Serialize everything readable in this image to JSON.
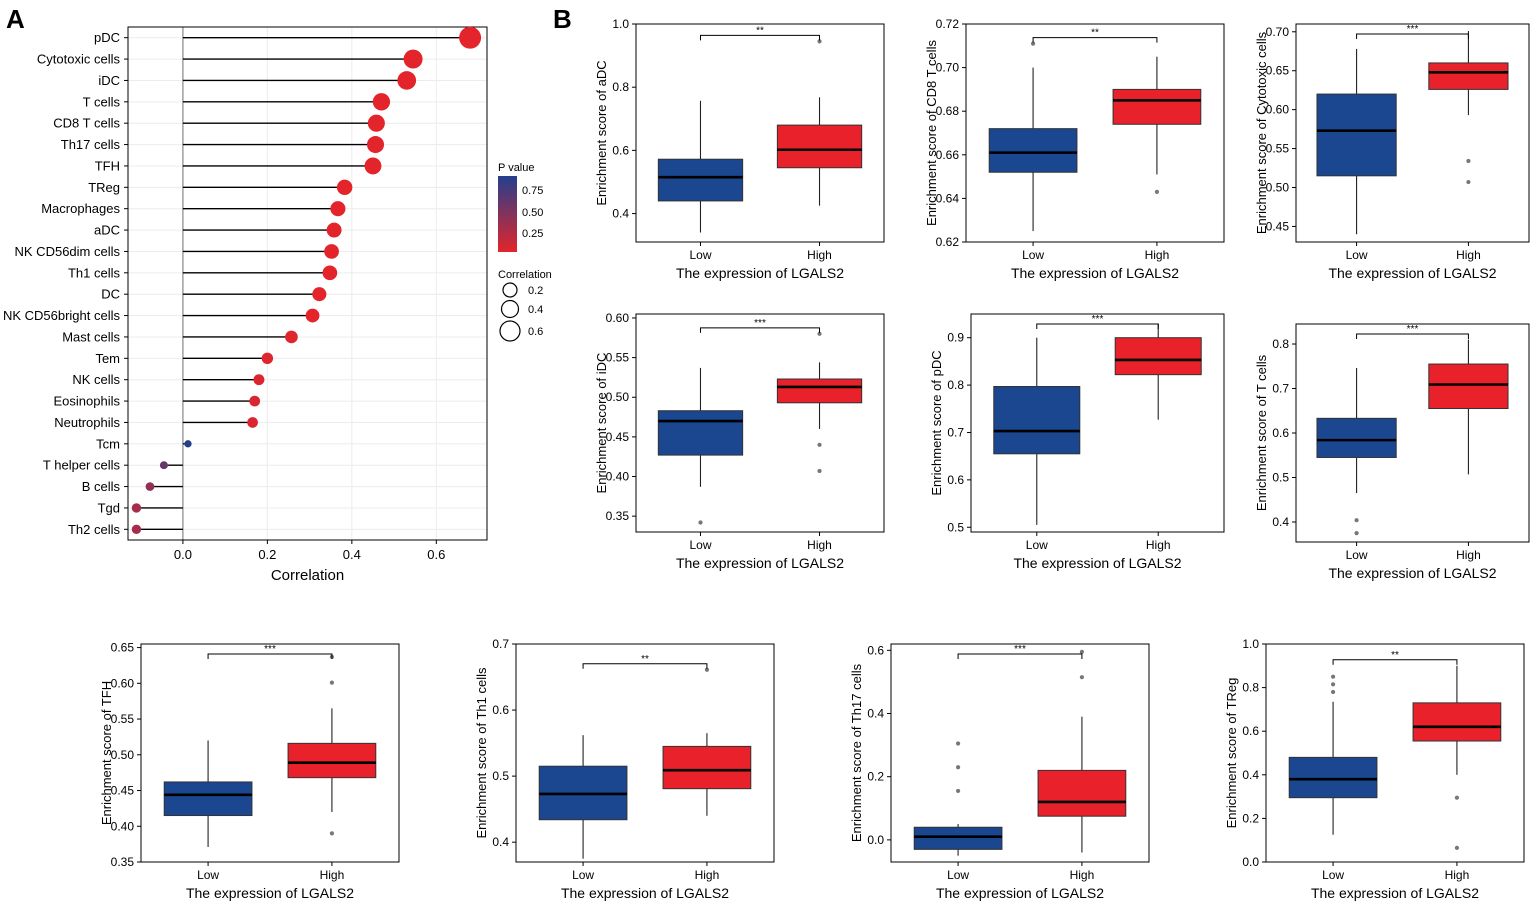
{
  "panel_labels": {
    "a": "A",
    "b": "B"
  },
  "colors": {
    "low": "#1b4690",
    "high": "#e8212a",
    "pmax": "#243f8d",
    "pmin": "#e3252b",
    "grid": "#ececec"
  },
  "chart_data": [
    {
      "type": "lollipop",
      "panel": "A",
      "xlabel": "Correlation",
      "xlim": [
        -0.13,
        0.72
      ],
      "xticks": [
        0.0,
        0.2,
        0.4,
        0.6
      ],
      "xtick_labels": [
        "0.0",
        "0.2",
        "0.4",
        "0.6"
      ],
      "categories": [
        "pDC",
        "Cytotoxic cells",
        "iDC",
        "T cells",
        "CD8 T cells",
        "Th17 cells",
        "TFH",
        "TReg",
        "Macrophages",
        "aDC",
        "NK CD56dim cells",
        "Th1 cells",
        "DC",
        "NK CD56bright cells",
        "Mast cells",
        "Tem",
        "NK cells",
        "Eosinophils",
        "Neutrophils",
        "Tcm",
        "T helper cells",
        "B cells",
        "Tgd",
        "Th2 cells"
      ],
      "correlation": [
        0.68,
        0.545,
        0.53,
        0.47,
        0.458,
        0.456,
        0.45,
        0.383,
        0.367,
        0.358,
        0.352,
        0.348,
        0.323,
        0.307,
        0.257,
        0.2,
        0.18,
        0.17,
        0.165,
        0.012,
        -0.045,
        -0.078,
        -0.11,
        -0.11
      ],
      "p_value": [
        0.0,
        0.0,
        0.0,
        0.0,
        0.0,
        0.0,
        0.0,
        0.0,
        0.0,
        0.0,
        0.0,
        0.0,
        0.0,
        0.0,
        0.02,
        0.03,
        0.04,
        0.05,
        0.05,
        0.92,
        0.6,
        0.4,
        0.3,
        0.3
      ],
      "legend": {
        "p_title": "P value",
        "p_ticks": [
          "0.75",
          "0.50",
          "0.25"
        ],
        "size_title": "Correlation",
        "size_ticks": [
          "0.2",
          "0.4",
          "0.6"
        ]
      }
    },
    {
      "type": "boxplot",
      "ylabel": "Enrichment score of aDC",
      "xlabel": "The expression of LGALS2",
      "categories": [
        "Low",
        "High"
      ],
      "ylim": [
        0.31,
        1.0
      ],
      "yticks": [
        "0.4",
        "0.6",
        "0.8",
        "1.0"
      ],
      "significance": "**",
      "boxes": [
        {
          "whislo": 0.34,
          "q1": 0.44,
          "med": 0.515,
          "q3": 0.572,
          "whishi": 0.757,
          "fliers": []
        },
        {
          "whislo": 0.425,
          "q1": 0.545,
          "med": 0.602,
          "q3": 0.68,
          "whishi": 0.768,
          "fliers": [
            0.945
          ]
        }
      ]
    },
    {
      "type": "boxplot",
      "ylabel": "Enrichment score of CD8 T cells",
      "xlabel": "The expression of LGALS2",
      "categories": [
        "Low",
        "High"
      ],
      "ylim": [
        0.62,
        0.72
      ],
      "yticks": [
        "0.62",
        "0.64",
        "0.66",
        "0.68",
        "0.70",
        "0.72"
      ],
      "significance": "**",
      "boxes": [
        {
          "whislo": 0.625,
          "q1": 0.652,
          "med": 0.661,
          "q3": 0.672,
          "whishi": 0.7,
          "fliers": [
            0.711
          ]
        },
        {
          "whislo": 0.651,
          "q1": 0.674,
          "med": 0.685,
          "q3": 0.69,
          "whishi": 0.705,
          "fliers": [
            0.643
          ]
        }
      ]
    },
    {
      "type": "boxplot",
      "ylabel": "Enrichment score of Cytotoxic cells",
      "xlabel": "The expression of LGALS2",
      "categories": [
        "Low",
        "High"
      ],
      "ylim": [
        0.43,
        0.71
      ],
      "yticks": [
        "0.45",
        "0.50",
        "0.55",
        "0.60",
        "0.65",
        "0.70"
      ],
      "significance": "***",
      "boxes": [
        {
          "whislo": 0.44,
          "q1": 0.515,
          "med": 0.573,
          "q3": 0.62,
          "whishi": 0.678,
          "fliers": []
        },
        {
          "whislo": 0.593,
          "q1": 0.626,
          "med": 0.648,
          "q3": 0.66,
          "whishi": 0.701,
          "fliers": [
            0.534,
            0.507
          ]
        }
      ]
    },
    {
      "type": "boxplot",
      "ylabel": "Enrichment score of iDC",
      "xlabel": "The expression of LGALS2",
      "categories": [
        "Low",
        "High"
      ],
      "ylim": [
        0.33,
        0.605
      ],
      "yticks": [
        "0.35",
        "0.40",
        "0.45",
        "0.50",
        "0.55",
        "0.60"
      ],
      "significance": "***",
      "boxes": [
        {
          "whislo": 0.387,
          "q1": 0.427,
          "med": 0.47,
          "q3": 0.483,
          "whishi": 0.537,
          "fliers": [
            0.342
          ]
        },
        {
          "whislo": 0.46,
          "q1": 0.493,
          "med": 0.513,
          "q3": 0.523,
          "whishi": 0.544,
          "fliers": [
            0.44,
            0.407,
            0.58
          ]
        }
      ]
    },
    {
      "type": "boxplot",
      "ylabel": "Enrichment score of pDC",
      "xlabel": "The expression of LGALS2",
      "categories": [
        "Low",
        "High"
      ],
      "ylim": [
        0.49,
        0.95
      ],
      "yticks": [
        "0.5",
        "0.6",
        "0.7",
        "0.8",
        "0.9"
      ],
      "significance": "***",
      "boxes": [
        {
          "whislo": 0.505,
          "q1": 0.655,
          "med": 0.703,
          "q3": 0.797,
          "whishi": 0.9,
          "fliers": []
        },
        {
          "whislo": 0.727,
          "q1": 0.822,
          "med": 0.853,
          "q3": 0.9,
          "whishi": 0.93,
          "fliers": []
        }
      ]
    },
    {
      "type": "boxplot",
      "ylabel": "Enrichment score of T cells",
      "xlabel": "The expression of LGALS2",
      "categories": [
        "Low",
        "High"
      ],
      "ylim": [
        0.355,
        0.845
      ],
      "yticks": [
        "0.4",
        "0.5",
        "0.6",
        "0.7",
        "0.8"
      ],
      "significance": "***",
      "boxes": [
        {
          "whislo": 0.465,
          "q1": 0.545,
          "med": 0.584,
          "q3": 0.633,
          "whishi": 0.746,
          "fliers": [
            0.404,
            0.375
          ]
        },
        {
          "whislo": 0.507,
          "q1": 0.655,
          "med": 0.709,
          "q3": 0.755,
          "whishi": 0.81,
          "fliers": []
        }
      ]
    },
    {
      "type": "boxplot",
      "ylabel": "Enrichment score of TFH",
      "xlabel": "The expression of LGALS2",
      "categories": [
        "Low",
        "High"
      ],
      "ylim": [
        0.35,
        0.655
      ],
      "yticks": [
        "0.35",
        "0.40",
        "0.45",
        "0.50",
        "0.55",
        "0.60",
        "0.65"
      ],
      "significance": "***",
      "boxes": [
        {
          "whislo": 0.371,
          "q1": 0.415,
          "med": 0.444,
          "q3": 0.462,
          "whishi": 0.52,
          "fliers": []
        },
        {
          "whislo": 0.42,
          "q1": 0.468,
          "med": 0.489,
          "q3": 0.516,
          "whishi": 0.565,
          "fliers": [
            0.39,
            0.601,
            0.637
          ]
        }
      ]
    },
    {
      "type": "boxplot",
      "ylabel": "Enrichment score of Th1 cells",
      "xlabel": "The expression of LGALS2",
      "categories": [
        "Low",
        "High"
      ],
      "ylim": [
        0.37,
        0.7
      ],
      "yticks": [
        "0.4",
        "0.5",
        "0.6",
        "0.7"
      ],
      "significance": "**",
      "boxes": [
        {
          "whislo": 0.375,
          "q1": 0.434,
          "med": 0.473,
          "q3": 0.515,
          "whishi": 0.562,
          "fliers": []
        },
        {
          "whislo": 0.44,
          "q1": 0.481,
          "med": 0.509,
          "q3": 0.545,
          "whishi": 0.565,
          "fliers": [
            0.661
          ]
        }
      ]
    },
    {
      "type": "boxplot",
      "ylabel": "Enrichment score of Th17 cells",
      "xlabel": "The expression of LGALS2",
      "categories": [
        "Low",
        "High"
      ],
      "ylim": [
        -0.07,
        0.62
      ],
      "yticks": [
        "0.0",
        "0.2",
        "0.4",
        "0.6"
      ],
      "significance": "***",
      "boxes": [
        {
          "whislo": -0.05,
          "q1": -0.03,
          "med": 0.01,
          "q3": 0.04,
          "whishi": 0.05,
          "fliers": [
            0.305,
            0.23,
            0.155
          ]
        },
        {
          "whislo": -0.04,
          "q1": 0.075,
          "med": 0.12,
          "q3": 0.22,
          "whishi": 0.39,
          "fliers": [
            0.515,
            0.595
          ]
        }
      ]
    },
    {
      "type": "boxplot",
      "ylabel": "Enrichment score of TReg",
      "xlabel": "The expression of LGALS2",
      "categories": [
        "Low",
        "High"
      ],
      "ylim": [
        0.0,
        1.0
      ],
      "yticks": [
        "0.0",
        "0.2",
        "0.4",
        "0.6",
        "0.8",
        "1.0"
      ],
      "significance": "**",
      "boxes": [
        {
          "whislo": 0.125,
          "q1": 0.295,
          "med": 0.38,
          "q3": 0.48,
          "whishi": 0.735,
          "fliers": [
            0.78,
            0.815,
            0.85
          ]
        },
        {
          "whislo": 0.4,
          "q1": 0.555,
          "med": 0.62,
          "q3": 0.73,
          "whishi": 0.9,
          "fliers": [
            0.295,
            0.065
          ]
        }
      ]
    }
  ]
}
